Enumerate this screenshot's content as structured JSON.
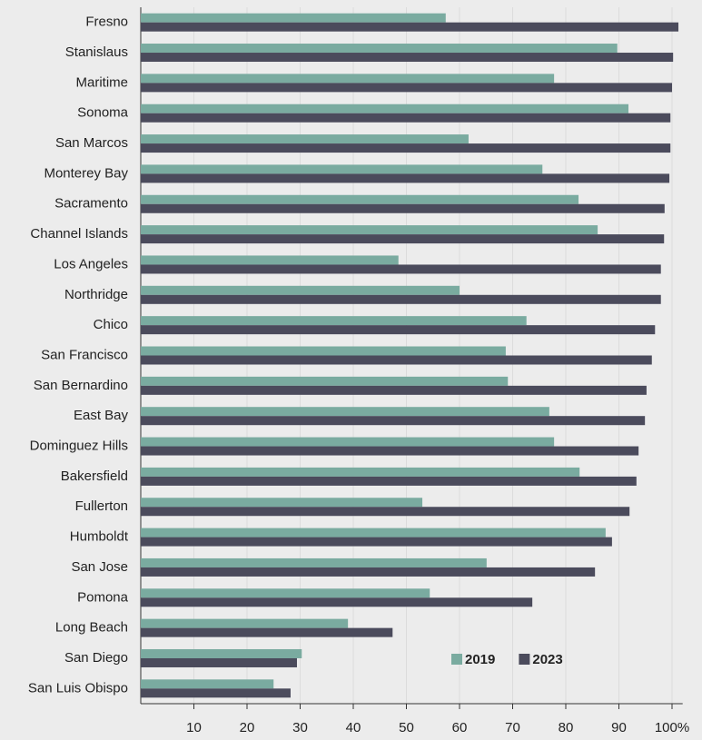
{
  "chart_data": {
    "type": "barh",
    "categories": [
      "Fresno",
      "Stanislaus",
      "Maritime",
      "Sonoma",
      "San Marcos",
      "Monterey Bay",
      "Sacramento",
      "Channel Islands",
      "Los Angeles",
      "Northridge",
      "Chico",
      "San Francisco",
      "San Bernardino",
      "East Bay",
      "Dominguez Hills",
      "Bakersfield",
      "Fullerton",
      "Humboldt",
      "San Jose",
      "Pomona",
      "Long Beach",
      "San Diego",
      "San Luis Obispo"
    ],
    "series": [
      {
        "name": "2019",
        "color": "#7aaba0",
        "values": [
          57.4,
          89.7,
          77.8,
          91.8,
          61.7,
          75.6,
          82.4,
          86.0,
          48.5,
          60.0,
          72.6,
          68.7,
          69.1,
          76.9,
          77.8,
          82.6,
          53.0,
          87.5,
          65.1,
          54.4,
          39.0,
          30.3,
          25.0
        ]
      },
      {
        "name": "2023",
        "color": "#4b4b5c",
        "values": [
          101.2,
          100.2,
          100.0,
          99.7,
          99.7,
          99.5,
          98.6,
          98.5,
          97.9,
          97.9,
          96.8,
          96.2,
          95.2,
          94.9,
          93.7,
          93.3,
          92.0,
          88.7,
          85.5,
          73.7,
          47.4,
          29.4,
          28.2
        ]
      }
    ],
    "xlim": [
      0,
      102
    ],
    "xticks": [
      10,
      20,
      30,
      40,
      50,
      60,
      70,
      80,
      90,
      {
        "value": 100,
        "label": "100%"
      }
    ],
    "grid": true,
    "legend": "lower right"
  }
}
